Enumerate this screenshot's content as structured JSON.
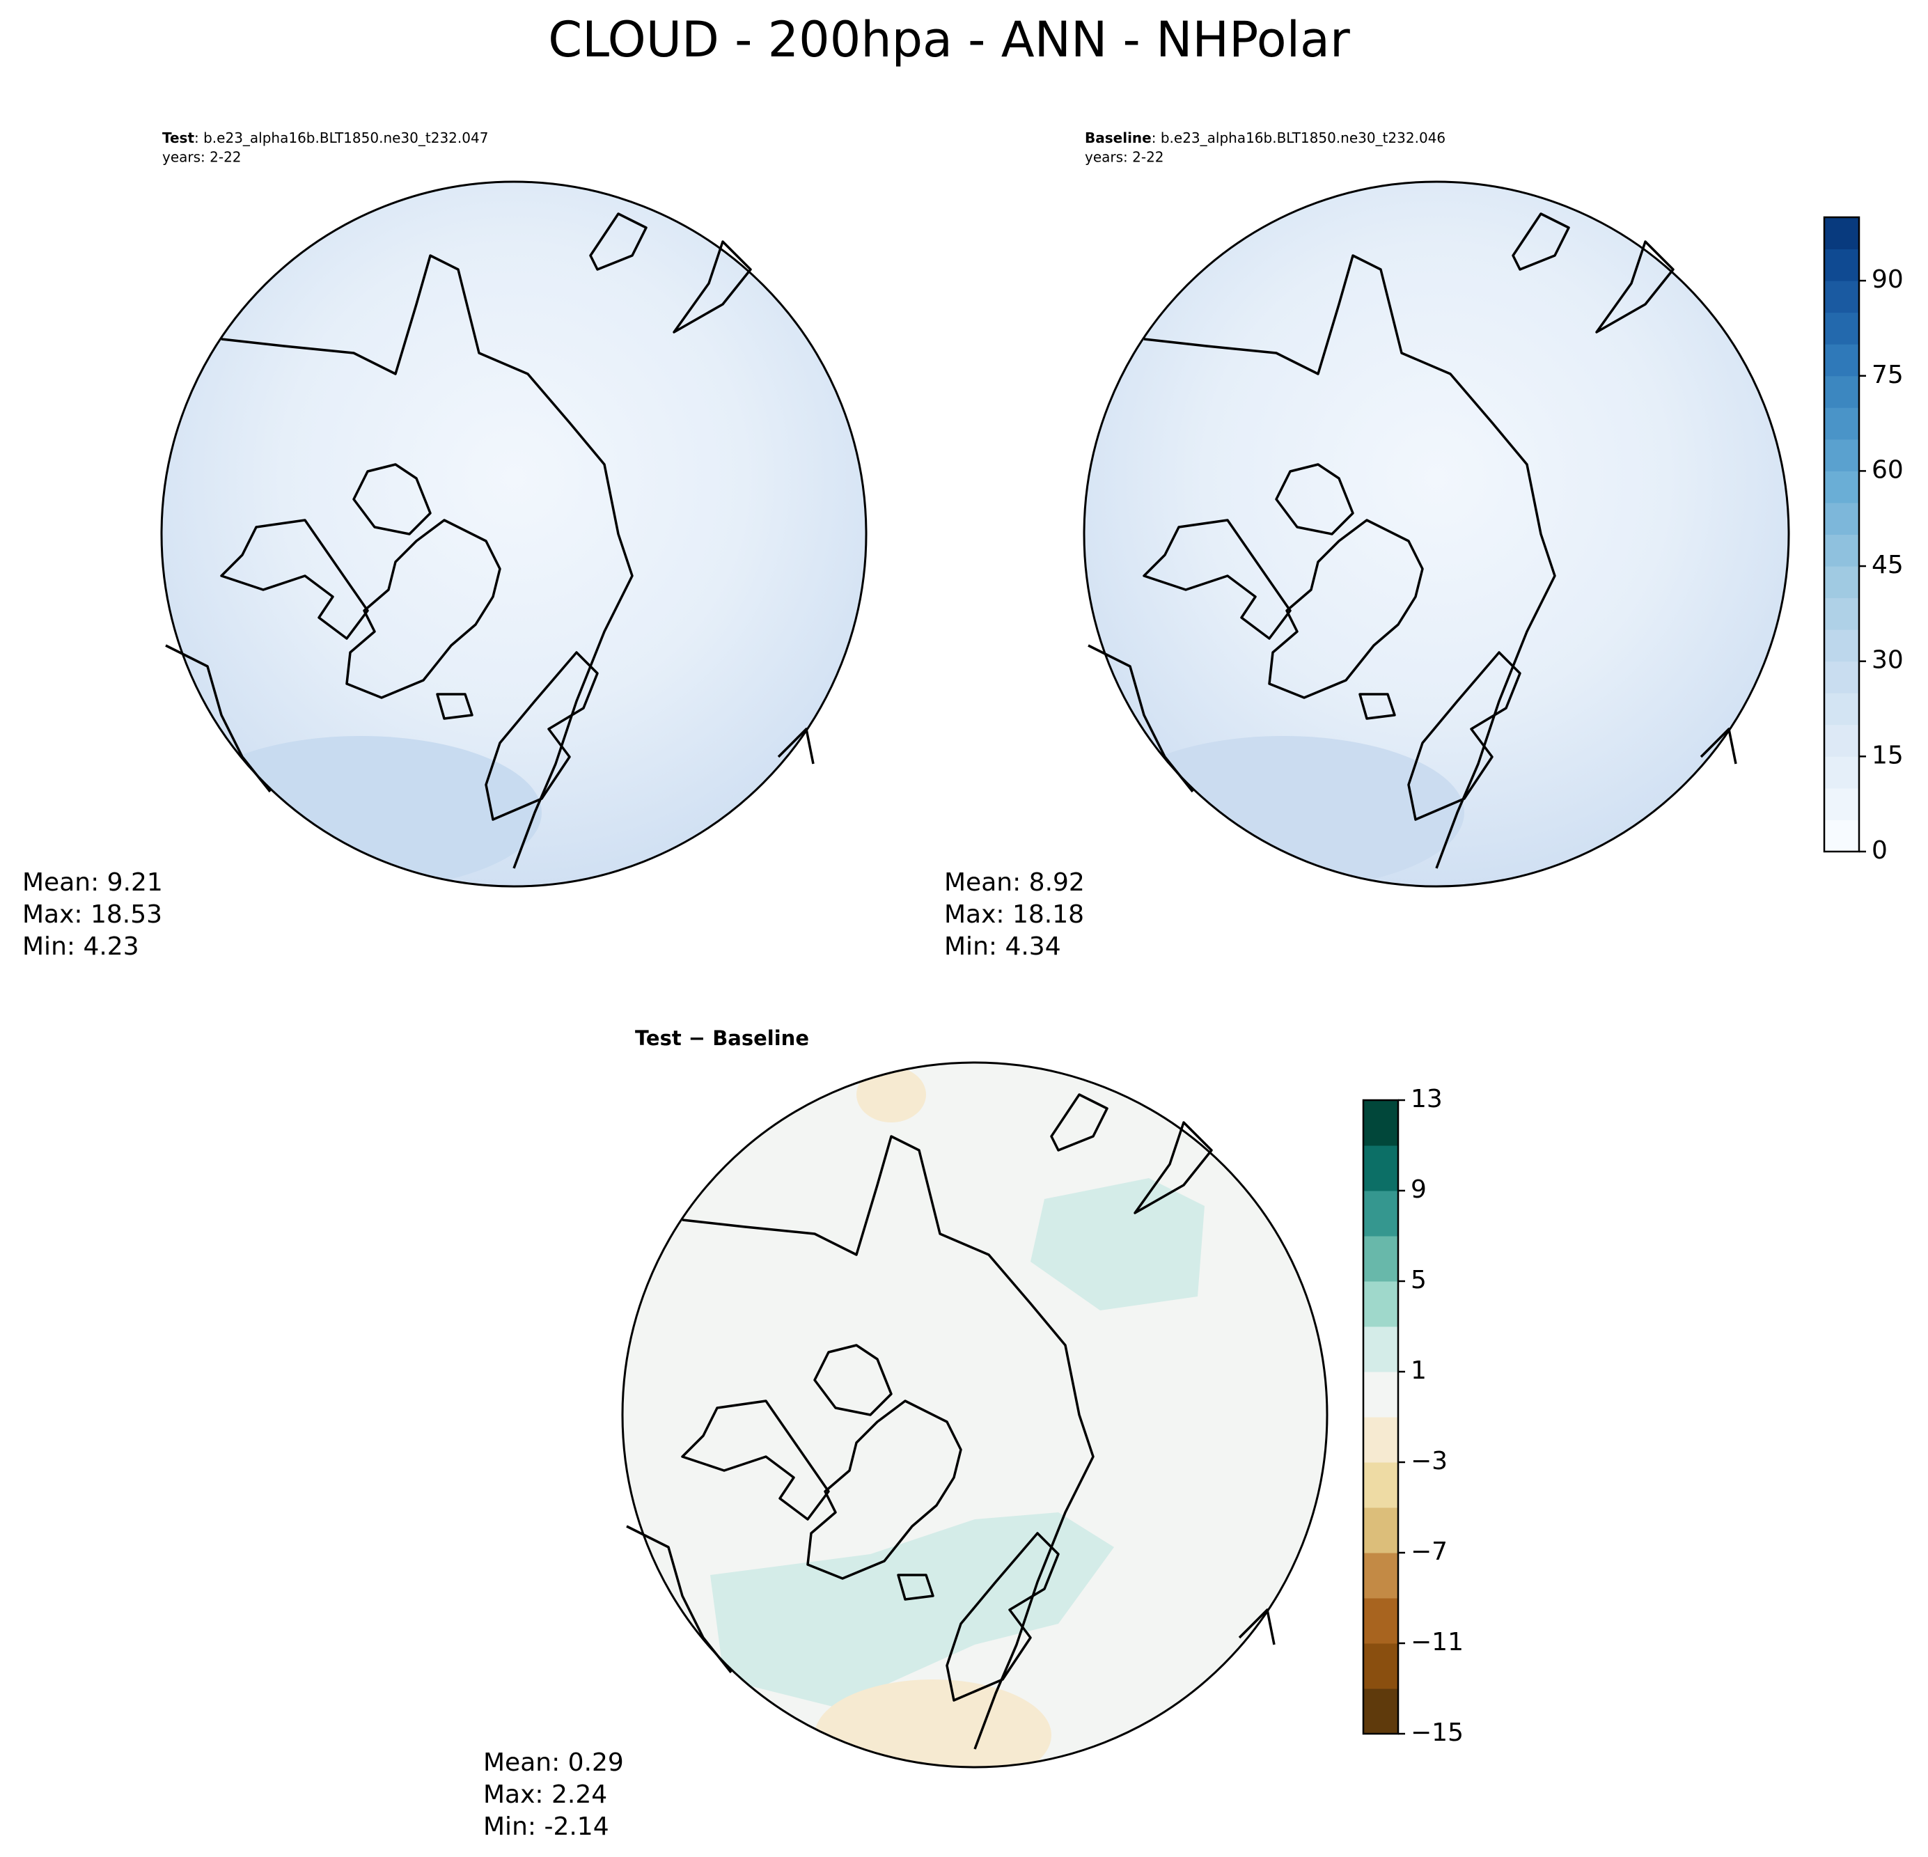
{
  "title": "CLOUD - 200hpa - ANN - NHPolar",
  "panels": [
    {
      "name": "Test",
      "case": ": b.e23_alpha16b.BLT1850.ne30_t232.047",
      "years": "years: 2-22",
      "stats": [
        "Mean:  9.21",
        "Max: 18.53",
        "Min:  4.23"
      ]
    },
    {
      "name": "Baseline",
      "case": ": b.e23_alpha16b.BLT1850.ne30_t232.046",
      "years": "years: 2-22",
      "stats": [
        "Mean:  8.92",
        "Max: 18.18",
        "Min:  4.34"
      ]
    },
    {
      "name": "Test − Baseline",
      "stats": [
        "Mean:  0.29",
        "Max:  2.24",
        "Min: -2.14"
      ]
    }
  ],
  "colorbars": [
    {
      "lim": [
        0,
        100
      ],
      "ticks": [
        0,
        15,
        30,
        45,
        60,
        75,
        90
      ],
      "colors": [
        "#f7fbff",
        "#eef5fc",
        "#e5eff9",
        "#dde9f6",
        "#d3e4f3",
        "#c9ddf0",
        "#bdd7ec",
        "#afd1e7",
        "#a0cae2",
        "#8fc1de",
        "#7db7da",
        "#6aaed6",
        "#5aa1cf",
        "#4a94c8",
        "#3c87c0",
        "#2f79b9",
        "#2369ad",
        "#1a5aa1",
        "#0f4a92",
        "#083a7e"
      ]
    },
    {
      "lim": [
        -15,
        13
      ],
      "ticks": [
        {
          "value": -15,
          "label": "−15"
        },
        {
          "value": -11,
          "label": "−11"
        },
        {
          "value": -7,
          "label": "−7"
        },
        {
          "value": -3,
          "label": "−3"
        },
        1,
        5,
        9,
        13
      ],
      "colors": [
        "#5f3a0c",
        "#8a4f0f",
        "#a8641f",
        "#c38a45",
        "#dcbe7a",
        "#eedba4",
        "#f6ead1",
        "#f3f5f3",
        "#d4ece8",
        "#9fd8cb",
        "#68b8aa",
        "#35978f",
        "#0c6f66",
        "#01473a"
      ]
    }
  ]
}
